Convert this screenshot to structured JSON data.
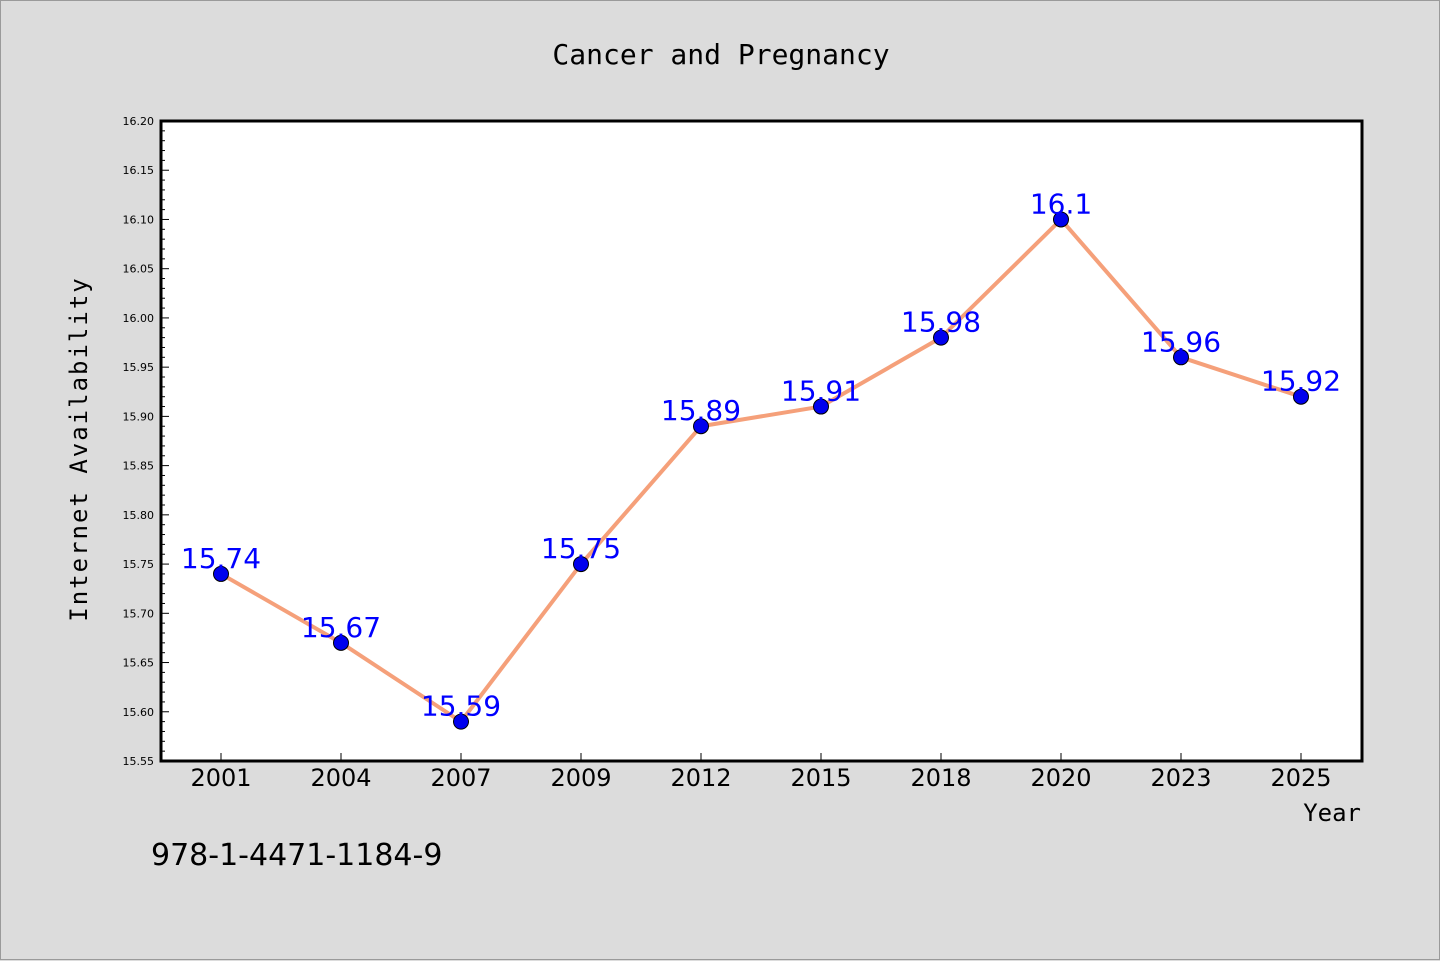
{
  "chart_data": {
    "type": "line",
    "title": "Cancer and Pregnancy",
    "xlabel": "Year",
    "ylabel": "Internet Availability",
    "categories": [
      "2001",
      "2004",
      "2007",
      "2009",
      "2012",
      "2015",
      "2018",
      "2020",
      "2023",
      "2025"
    ],
    "values": [
      15.74,
      15.67,
      15.59,
      15.75,
      15.89,
      15.91,
      15.98,
      16.1,
      15.96,
      15.92
    ],
    "data_labels": [
      "15.74",
      "15.67",
      "15.59",
      "15.75",
      "15.89",
      "15.91",
      "15.98",
      "16.1",
      "15.96",
      "15.92"
    ],
    "ylim": [
      15.55,
      16.2
    ],
    "y_ticks": [
      "15.55",
      "15.60",
      "15.65",
      "15.70",
      "15.75",
      "15.80",
      "15.85",
      "15.90",
      "15.95",
      "16.00",
      "16.05",
      "16.10",
      "16.15",
      "16.20"
    ],
    "grid": false,
    "legend": "none",
    "colors": {
      "line": "#f5a07a",
      "marker": "#0000ee",
      "label": "#0000ff",
      "background": "#dcdcdc",
      "plot_background": "#ffffff"
    }
  },
  "footer": {
    "isbn": "978-1-4471-1184-9"
  }
}
